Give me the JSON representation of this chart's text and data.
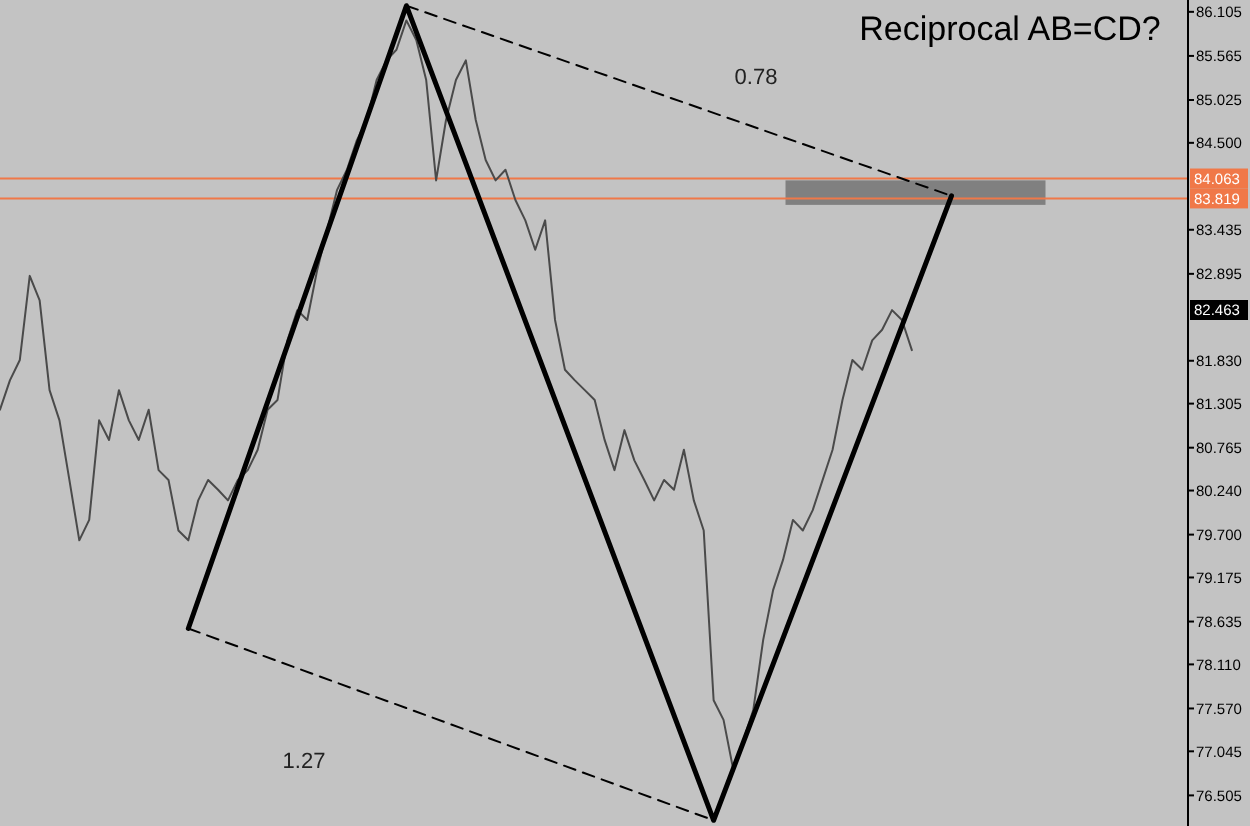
{
  "chart_data": {
    "type": "line",
    "title": "Reciprocal AB=CD?",
    "categories": [
      null,
      null,
      null,
      null,
      null,
      null,
      null,
      null,
      null,
      null,
      null,
      null,
      null,
      null,
      null,
      null,
      null,
      null,
      null,
      null,
      null,
      null,
      null,
      null,
      null,
      null,
      null,
      null,
      null,
      null,
      null,
      null,
      null,
      null,
      null,
      null,
      null,
      null,
      null,
      null,
      null,
      null,
      null,
      null,
      null,
      null,
      null,
      null,
      null,
      null,
      null,
      null,
      null,
      null,
      null,
      null,
      null,
      null,
      null,
      null,
      null,
      null,
      null,
      null,
      null,
      null,
      null,
      null,
      null,
      null,
      null,
      null,
      null,
      null,
      null,
      null,
      null,
      null,
      null,
      null,
      null,
      null,
      null,
      null,
      null,
      null,
      null,
      null,
      null,
      null,
      null,
      null,
      null,
      null,
      null,
      null,
      null,
      null,
      null,
      null,
      null,
      null,
      null,
      null,
      null,
      null,
      null,
      null,
      null,
      null,
      null,
      null,
      null,
      null
    ],
    "series": [
      {
        "color": "#4a4a4a",
        "line_style": "solid",
        "values": [
          81.23,
          81.59,
          81.84,
          82.87,
          82.57,
          81.47,
          81.1,
          80.37,
          79.63,
          79.88,
          81.1,
          80.86,
          81.47,
          81.1,
          80.86,
          81.23,
          80.49,
          80.37,
          79.75,
          79.63,
          80.12,
          80.37,
          80.25,
          80.12,
          80.37,
          80.49,
          80.74,
          81.23,
          81.35,
          82.08,
          82.45,
          82.33,
          82.94,
          83.43,
          83.92,
          84.17,
          84.53,
          84.78,
          85.27,
          85.51,
          85.64,
          86.0,
          85.76,
          85.27,
          84.04,
          84.78,
          85.27,
          85.51,
          84.78,
          84.29,
          84.04,
          84.17,
          83.8,
          83.55,
          83.19,
          83.55,
          82.33,
          81.72,
          81.59,
          81.47,
          81.35,
          80.86,
          80.49,
          80.98,
          80.61,
          80.37,
          80.12,
          80.37,
          80.25,
          80.74,
          80.12,
          79.75,
          77.67,
          77.43,
          76.81,
          77.18,
          77.55,
          78.41,
          79.02,
          79.39,
          79.88,
          79.75,
          80.0,
          80.37,
          80.74,
          81.35,
          81.84,
          81.72,
          82.08,
          82.21,
          82.45,
          82.33,
          81.96,
          null,
          null,
          null,
          null,
          null,
          null,
          null,
          null,
          null,
          null,
          null,
          null,
          null,
          null,
          null,
          null,
          null,
          null,
          null,
          null,
          null
        ]
      },
      {
        "color": "#000000",
        "line_style": "solid",
        "values": [
          null,
          null,
          null,
          null,
          null,
          null,
          null,
          null,
          null,
          null,
          null,
          null,
          null,
          null,
          null,
          null,
          null,
          null,
          null,
          78.55,
          null,
          null,
          null,
          null,
          null,
          null,
          null,
          null,
          null,
          null,
          null,
          null,
          null,
          null,
          null,
          null,
          null,
          null,
          null,
          null,
          null,
          86.18,
          null,
          null,
          null,
          null,
          null,
          null,
          null,
          null,
          null,
          null,
          null,
          null,
          null,
          null,
          null,
          null,
          null,
          null,
          null,
          null,
          null,
          null,
          null,
          null,
          null,
          null,
          null,
          null,
          null,
          null,
          76.2,
          null,
          null,
          null,
          null,
          null,
          null,
          null,
          null,
          null,
          null,
          null,
          null,
          null,
          null,
          null,
          null,
          null,
          null,
          null,
          null,
          null,
          null,
          null,
          83.85,
          null,
          null,
          null,
          null,
          null,
          null,
          null,
          null,
          null,
          null,
          null,
          null,
          null,
          null,
          null,
          null,
          null
        ]
      },
      {
        "color": "#000000",
        "line_style": "dashed",
        "values": [
          null,
          null,
          null,
          null,
          null,
          null,
          null,
          null,
          null,
          null,
          null,
          null,
          null,
          null,
          null,
          null,
          null,
          null,
          null,
          78.55,
          null,
          null,
          null,
          null,
          null,
          null,
          null,
          null,
          null,
          null,
          null,
          null,
          null,
          null,
          null,
          null,
          null,
          null,
          null,
          null,
          null,
          null,
          null,
          null,
          null,
          null,
          null,
          null,
          null,
          null,
          null,
          null,
          null,
          null,
          null,
          null,
          null,
          null,
          null,
          null,
          null,
          null,
          null,
          null,
          null,
          null,
          null,
          null,
          null,
          null,
          null,
          null,
          76.2,
          null,
          null,
          null,
          null,
          null,
          null,
          null,
          null,
          null,
          null,
          null,
          null,
          null,
          null,
          null,
          null,
          null,
          null,
          null,
          null,
          null,
          null,
          null,
          null,
          null,
          null,
          null,
          null,
          null,
          null,
          null,
          null,
          null,
          null,
          null,
          null,
          null,
          null,
          null,
          null,
          null
        ]
      },
      {
        "color": "#000000",
        "line_style": "dashed",
        "values": [
          null,
          null,
          null,
          null,
          null,
          null,
          null,
          null,
          null,
          null,
          null,
          null,
          null,
          null,
          null,
          null,
          null,
          null,
          null,
          null,
          null,
          null,
          null,
          null,
          null,
          null,
          null,
          null,
          null,
          null,
          null,
          null,
          null,
          null,
          null,
          null,
          null,
          null,
          null,
          null,
          null,
          86.18,
          null,
          null,
          null,
          null,
          null,
          null,
          null,
          null,
          null,
          null,
          null,
          null,
          null,
          null,
          null,
          null,
          null,
          null,
          null,
          null,
          null,
          null,
          null,
          null,
          null,
          null,
          null,
          null,
          null,
          null,
          null,
          null,
          null,
          null,
          null,
          null,
          null,
          null,
          null,
          null,
          null,
          null,
          null,
          null,
          null,
          null,
          null,
          null,
          null,
          null,
          null,
          null,
          null,
          null,
          83.85,
          null,
          null,
          null,
          null,
          null,
          null,
          null,
          null,
          null,
          null,
          null,
          null,
          null,
          null,
          null,
          null,
          null
        ]
      }
    ],
    "ylim": [
      76.13,
      86.25
    ],
    "yticks": [
      {
        "value": 86.105,
        "label": "86.105"
      },
      {
        "value": 85.565,
        "label": "85.565"
      },
      {
        "value": 85.025,
        "label": "85.025"
      },
      {
        "value": 84.5,
        "label": "84.500"
      },
      {
        "value": 83.435,
        "label": "83.435"
      },
      {
        "value": 82.895,
        "label": "82.895"
      },
      {
        "value": 81.83,
        "label": "81.830"
      },
      {
        "value": 81.305,
        "label": "81.305"
      },
      {
        "value": 80.765,
        "label": "80.765"
      },
      {
        "value": 80.24,
        "label": "80.240"
      },
      {
        "value": 79.7,
        "label": "79.700"
      },
      {
        "value": 79.175,
        "label": "79.175"
      },
      {
        "value": 78.635,
        "label": "78.635"
      },
      {
        "value": 78.11,
        "label": "78.110"
      },
      {
        "value": 77.57,
        "label": "77.570"
      },
      {
        "value": 77.045,
        "label": "77.045"
      },
      {
        "value": 76.505,
        "label": "76.505"
      }
    ],
    "tick_labels": "y",
    "ref_lines": [
      {
        "axis": "y",
        "value": 84.063,
        "label": "84.063",
        "color": "#f07848"
      },
      {
        "axis": "y",
        "value": 83.819,
        "label": "83.819",
        "color": "#f07848"
      }
    ],
    "bands": [
      {
        "axis": "y",
        "from": 83.74,
        "to": 84.04,
        "color": "#808080"
      }
    ],
    "annotations": [
      "0.78",
      "1.27",
      "82.463"
    ]
  }
}
